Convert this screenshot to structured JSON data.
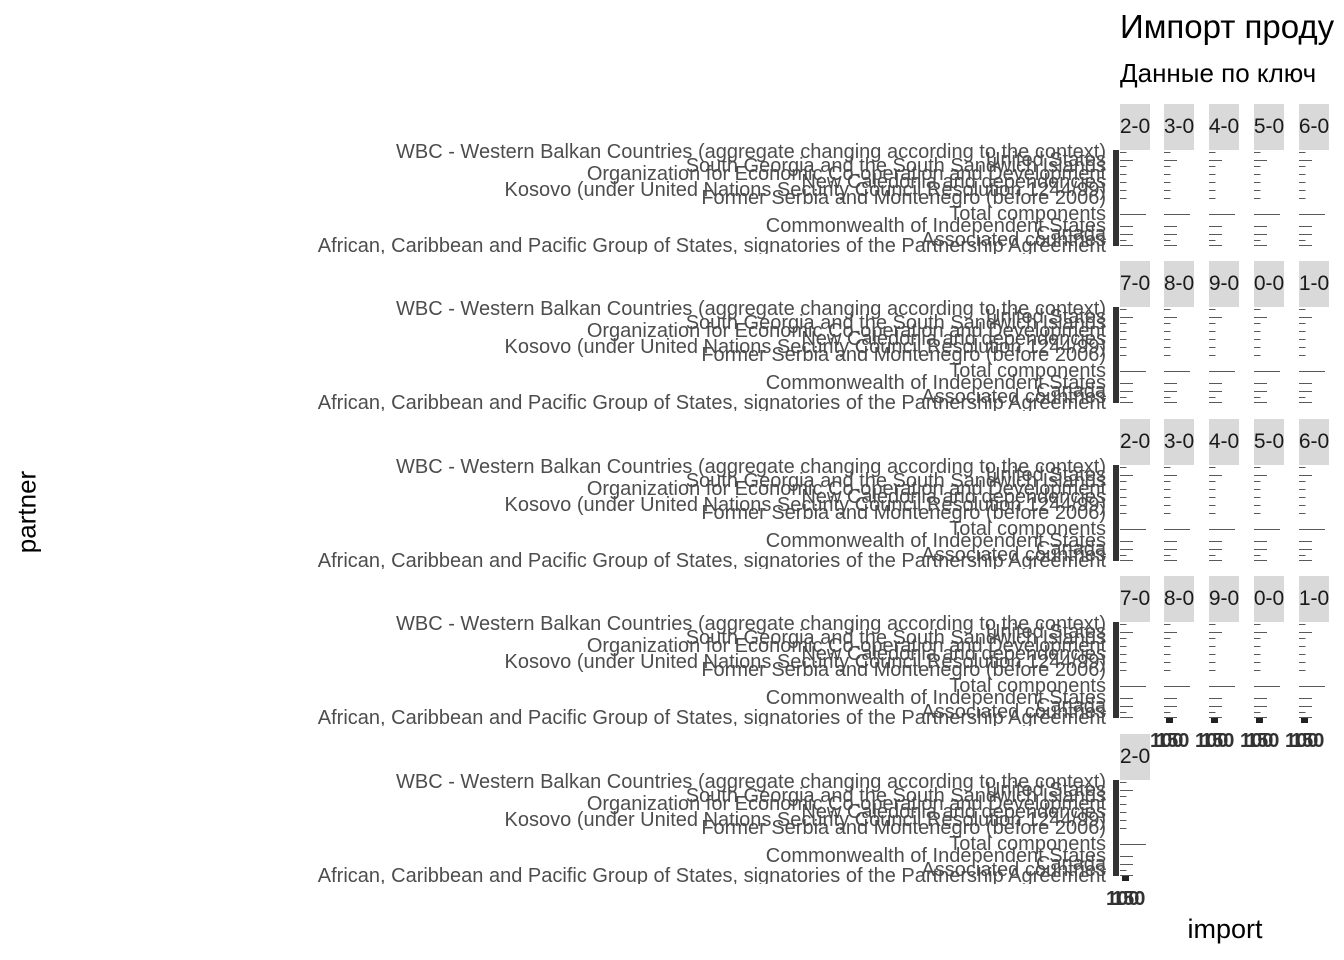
{
  "title": "Импорт проду",
  "subtitle": "Данные по ключ",
  "chart_data": {
    "type": "bar",
    "orientation": "horizontal",
    "title": "Импорт проду",
    "subtitle": "Данные по ключ",
    "xlabel": "import",
    "ylabel": "partner",
    "facet_labels": [
      [
        "2-0",
        "3-0",
        "4-0",
        "5-0",
        "6-0"
      ],
      [
        "7-0",
        "8-0",
        "9-0",
        "0-0",
        "1-0"
      ],
      [
        "2-0",
        "3-0",
        "4-0",
        "5-0",
        "6-0"
      ],
      [
        "7-0",
        "8-0",
        "9-0",
        "0-0",
        "1-0"
      ],
      [
        "2-0"
      ]
    ],
    "x_tick_labels": [
      "100",
      "150"
    ],
    "categories": [
      "WBC - Western Balkan Countries (aggregate changing according to the context)",
      "United States",
      "South Georgia and the South Sandwich Islands",
      "Organization for Economic Co-operation and Development",
      "New Caledonia and dependencies",
      "Kosovo (under United Nations Security Council Resolution 1244/99)",
      "Former Serbia and Montenegro (before 2006)",
      "Total components",
      "Commonwealth of Independent States",
      "Canada",
      "Associated countries",
      "African, Caribbean and Pacific Group of States, signatories of the Partnership Agreement"
    ],
    "series": [
      {
        "values": [
          0.5,
          1,
          0.5,
          0.5,
          0.5,
          0.5,
          0.5,
          2,
          1,
          1,
          0.5,
          1
        ]
      }
    ],
    "grid": false
  }
}
